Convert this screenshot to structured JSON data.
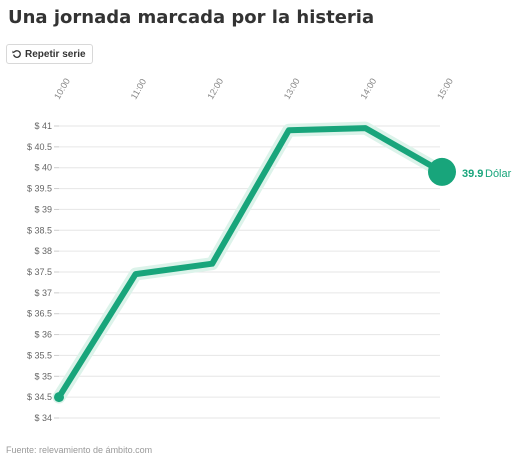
{
  "title": "Una jornada marcada por la histeria",
  "replay_button": {
    "label": "Repetir serie",
    "icon": "replay-icon"
  },
  "source": "Fuente: relevamiento de ámbito.com",
  "chart_data": {
    "type": "line",
    "title": "Una jornada marcada por la histeria",
    "x_ticks": [
      "10:00",
      "11:00",
      "12:00",
      "13:00",
      "14:00",
      "15:00"
    ],
    "y_ticks": [
      "$ 34",
      "$ 34.5",
      "$ 35",
      "$ 35.5",
      "$ 36",
      "$ 36.5",
      "$ 37",
      "$ 37.5",
      "$ 38",
      "$ 38.5",
      "$ 39",
      "$ 39.5",
      "$ 40",
      "$ 40.5",
      "$ 41"
    ],
    "ylim": [
      34,
      41
    ],
    "grid": true,
    "series": [
      {
        "name": "Dólar",
        "x": [
          "10:00",
          "11:00",
          "12:00",
          "13:00",
          "14:00",
          "15:00"
        ],
        "values": [
          34.5,
          37.45,
          37.7,
          40.9,
          40.95,
          39.9
        ],
        "color": "#18a57b"
      }
    ],
    "end_label": {
      "value": "39.9",
      "unit": "Dólar"
    }
  }
}
